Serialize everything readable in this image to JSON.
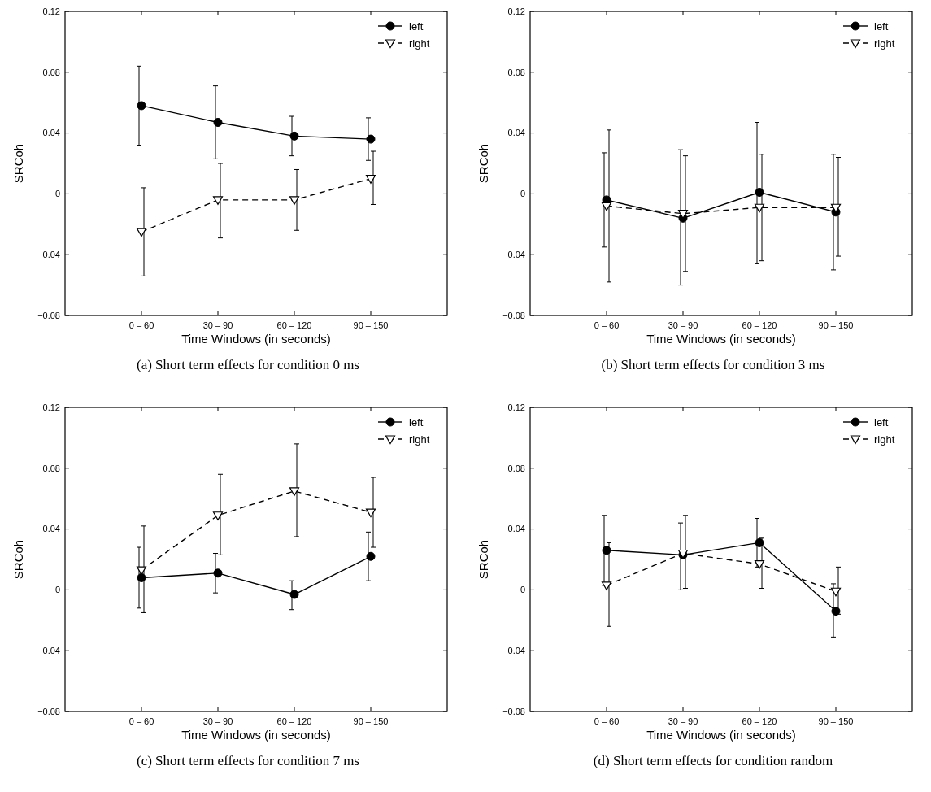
{
  "chart_data": [
    {
      "type": "line",
      "title": "(a) Short term effects for condition 0 ms",
      "xlabel": "Time Windows (in seconds)",
      "ylabel": "SRCoh",
      "categories": [
        "0 – 60",
        "30 – 90",
        "60 – 120",
        "90 – 150"
      ],
      "ylim": [
        -0.08,
        0.12
      ],
      "yticks": [
        -0.08,
        -0.04,
        0,
        0.04,
        0.08,
        0.12
      ],
      "legend": "top right",
      "grid": false,
      "series": [
        {
          "name": "left",
          "color": "#000000",
          "marker": "circle",
          "line_style": "solid",
          "values": [
            0.058,
            0.047,
            0.038,
            0.036
          ],
          "errors": [
            [
              0.032,
              0.084
            ],
            [
              0.023,
              0.071
            ],
            [
              0.025,
              0.051
            ],
            [
              0.022,
              0.05
            ]
          ]
        },
        {
          "name": "right",
          "color": "#000000",
          "marker": "triangle",
          "line_style": "dashed",
          "values": [
            -0.025,
            -0.004,
            -0.004,
            0.01
          ],
          "errors": [
            [
              -0.054,
              0.004
            ],
            [
              -0.029,
              0.02
            ],
            [
              -0.024,
              0.016
            ],
            [
              -0.007,
              0.028
            ]
          ]
        }
      ]
    },
    {
      "type": "line",
      "title": "(b) Short term effects for condition 3 ms",
      "xlabel": "Time Windows (in seconds)",
      "ylabel": "SRCoh",
      "categories": [
        "0 – 60",
        "30 – 90",
        "60 – 120",
        "90 – 150"
      ],
      "ylim": [
        -0.08,
        0.12
      ],
      "yticks": [
        -0.08,
        -0.04,
        0,
        0.04,
        0.08,
        0.12
      ],
      "legend": "top right",
      "grid": false,
      "series": [
        {
          "name": "left",
          "color": "#000000",
          "marker": "circle",
          "line_style": "solid",
          "values": [
            -0.004,
            -0.016,
            0.001,
            -0.012
          ],
          "errors": [
            [
              -0.035,
              0.027
            ],
            [
              -0.06,
              0.029
            ],
            [
              -0.046,
              0.047
            ],
            [
              -0.05,
              0.026
            ]
          ]
        },
        {
          "name": "right",
          "color": "#000000",
          "marker": "triangle",
          "line_style": "dashed",
          "values": [
            -0.008,
            -0.013,
            -0.009,
            -0.009
          ],
          "errors": [
            [
              -0.058,
              0.042
            ],
            [
              -0.051,
              0.025
            ],
            [
              -0.044,
              0.026
            ],
            [
              -0.041,
              0.024
            ]
          ]
        }
      ]
    },
    {
      "type": "line",
      "title": "(c) Short term effects for condition 7 ms",
      "xlabel": "Time Windows (in seconds)",
      "ylabel": "SRCoh",
      "categories": [
        "0 – 60",
        "30 – 90",
        "60 – 120",
        "90 – 150"
      ],
      "ylim": [
        -0.08,
        0.12
      ],
      "yticks": [
        -0.08,
        -0.04,
        0,
        0.04,
        0.08,
        0.12
      ],
      "legend": "top right",
      "grid": false,
      "series": [
        {
          "name": "left",
          "color": "#000000",
          "marker": "circle",
          "line_style": "solid",
          "values": [
            0.008,
            0.011,
            -0.003,
            0.022
          ],
          "errors": [
            [
              -0.012,
              0.028
            ],
            [
              -0.002,
              0.024
            ],
            [
              -0.013,
              0.006
            ],
            [
              0.006,
              0.038
            ]
          ]
        },
        {
          "name": "right",
          "color": "#000000",
          "marker": "triangle",
          "line_style": "dashed",
          "values": [
            0.013,
            0.049,
            0.065,
            0.051
          ],
          "errors": [
            [
              -0.015,
              0.042
            ],
            [
              0.023,
              0.076
            ],
            [
              0.035,
              0.096
            ],
            [
              0.028,
              0.074
            ]
          ]
        }
      ]
    },
    {
      "type": "line",
      "title": "(d) Short term effects for condition random",
      "xlabel": "Time Windows (in seconds)",
      "ylabel": "SRCoh",
      "categories": [
        "0 – 60",
        "30 – 90",
        "60 – 120",
        "90 – 150"
      ],
      "ylim": [
        -0.08,
        0.12
      ],
      "yticks": [
        -0.08,
        -0.04,
        0,
        0.04,
        0.08,
        0.12
      ],
      "legend": "top right",
      "grid": false,
      "series": [
        {
          "name": "left",
          "color": "#000000",
          "marker": "circle",
          "line_style": "solid",
          "values": [
            0.026,
            0.023,
            0.031,
            -0.014
          ],
          "errors": [
            [
              0.003,
              0.049
            ],
            [
              0.0,
              0.044
            ],
            [
              0.015,
              0.047
            ],
            [
              -0.031,
              0.004
            ]
          ]
        },
        {
          "name": "right",
          "color": "#000000",
          "marker": "triangle",
          "line_style": "dashed",
          "values": [
            0.003,
            0.024,
            0.017,
            -0.001
          ],
          "errors": [
            [
              -0.024,
              0.031
            ],
            [
              0.001,
              0.049
            ],
            [
              0.001,
              0.034
            ],
            [
              -0.016,
              0.015
            ]
          ]
        }
      ]
    }
  ]
}
